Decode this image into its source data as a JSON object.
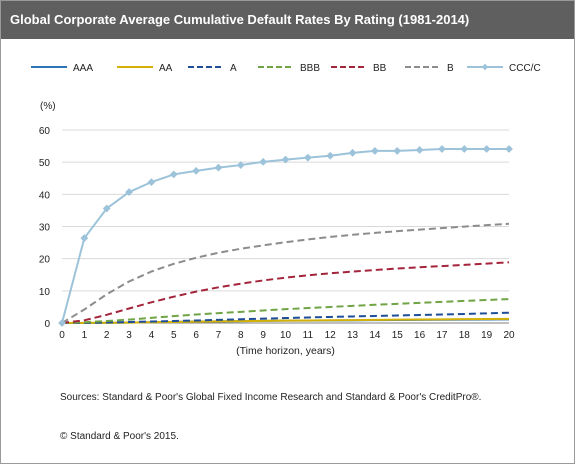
{
  "title": "Global Corporate Average Cumulative Default Rates By Rating (1981-2014)",
  "sources": "Sources: Standard & Poor's Global Fixed Income Research and Standard & Poor's CreditPro®.",
  "copyright": "© Standard & Poor's 2015.",
  "chart_data": {
    "type": "line",
    "title": "Global Corporate Average Cumulative Default Rates By Rating (1981-2014)",
    "ylabel": "(%)",
    "xlabel": "(Time horizon, years)",
    "x": [
      0,
      1,
      2,
      3,
      4,
      5,
      6,
      7,
      8,
      9,
      10,
      11,
      12,
      13,
      14,
      15,
      16,
      17,
      18,
      19,
      20
    ],
    "ylim": [
      0,
      60
    ],
    "yticks": [
      0,
      10,
      20,
      30,
      40,
      50,
      60
    ],
    "xlim": [
      0,
      20
    ],
    "grid": "horizontal",
    "legend": "top",
    "series": [
      {
        "name": "AAA",
        "color": "#2e75b6",
        "dash": "solid",
        "markers": false,
        "values": [
          0,
          0,
          0.03,
          0.13,
          0.24,
          0.35,
          0.45,
          0.51,
          0.6,
          0.66,
          0.72,
          0.75,
          0.78,
          0.83,
          0.89,
          0.94,
          0.97,
          1.02,
          1.06,
          1.1,
          1.13
        ]
      },
      {
        "name": "AA",
        "color": "#d4b106",
        "dash": "solid",
        "markers": false,
        "values": [
          0,
          0.02,
          0.06,
          0.12,
          0.22,
          0.32,
          0.42,
          0.51,
          0.59,
          0.66,
          0.73,
          0.79,
          0.85,
          0.91,
          0.97,
          1.03,
          1.08,
          1.13,
          1.19,
          1.24,
          1.29
        ]
      },
      {
        "name": "A",
        "color": "#1f4e99",
        "dash": "dashed",
        "markers": false,
        "values": [
          0,
          0.07,
          0.18,
          0.3,
          0.46,
          0.61,
          0.79,
          0.98,
          1.16,
          1.35,
          1.54,
          1.72,
          1.88,
          2.04,
          2.19,
          2.34,
          2.5,
          2.65,
          2.81,
          3.0,
          3.2
        ]
      },
      {
        "name": "BBB",
        "color": "#70a444",
        "dash": "dashed",
        "markers": false,
        "values": [
          0,
          0.22,
          0.63,
          1.06,
          1.6,
          2.14,
          2.65,
          3.06,
          3.46,
          3.89,
          4.3,
          4.65,
          4.98,
          5.33,
          5.66,
          5.96,
          6.26,
          6.56,
          6.87,
          7.15,
          7.44
        ]
      },
      {
        "name": "BB",
        "color": "#a3243b",
        "dash": "dashed",
        "markers": false,
        "values": [
          0,
          0.84,
          2.55,
          4.51,
          6.44,
          8.18,
          9.76,
          11.09,
          12.23,
          13.23,
          14.1,
          14.83,
          15.45,
          15.99,
          16.48,
          16.92,
          17.32,
          17.7,
          18.07,
          18.47,
          18.88
        ]
      },
      {
        "name": "B",
        "color": "#8c8c8c",
        "dash": "dashed",
        "markers": false,
        "values": [
          0,
          4.19,
          8.93,
          12.9,
          16.01,
          18.39,
          20.28,
          21.83,
          23.08,
          24.14,
          25.11,
          25.99,
          26.76,
          27.42,
          28.01,
          28.55,
          29.04,
          29.51,
          29.97,
          30.42,
          30.85
        ]
      },
      {
        "name": "CCC/C",
        "color": "#9cc3da",
        "dash": "solid",
        "markers": true,
        "values": [
          0,
          26.4,
          35.6,
          40.7,
          43.8,
          46.2,
          47.3,
          48.3,
          49.1,
          50.1,
          50.8,
          51.4,
          52.0,
          52.9,
          53.5,
          53.5,
          53.8,
          54.1,
          54.1,
          54.1,
          54.1
        ]
      }
    ]
  }
}
